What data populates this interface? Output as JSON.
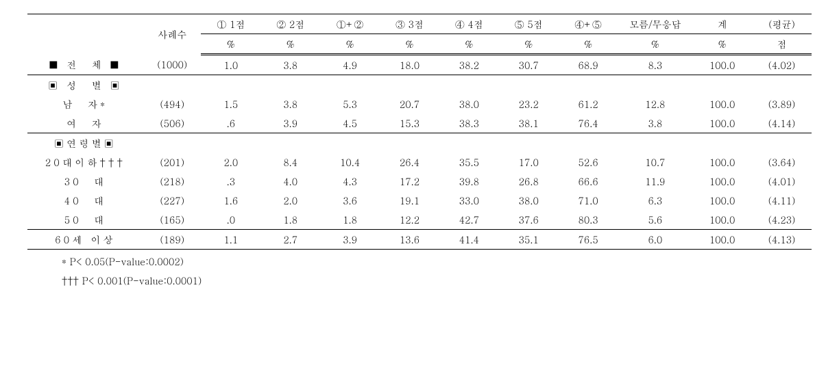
{
  "columns": {
    "label": "",
    "cases": "사례수",
    "c1": "① 1점",
    "c2": "② 2점",
    "c12": "①+②",
    "c3": "③ 3점",
    "c4": "④ 4점",
    "c5": "⑤ 5점",
    "c45": "④+⑤",
    "dk": "모름/무응답",
    "total": "계",
    "avg": "(평균)"
  },
  "unitRow": {
    "c1": "%",
    "c2": "%",
    "c12": "%",
    "c3": "%",
    "c4": "%",
    "c5": "%",
    "c45": "%",
    "dk": "%",
    "total": "%",
    "avg": "점"
  },
  "rows": [
    {
      "label": "■ 전　체 ■",
      "cases": "(1000)",
      "c1": "1.0",
      "c2": "3.8",
      "c12": "4.9",
      "c3": "18.0",
      "c4": "38.2",
      "c5": "30.7",
      "c45": "68.9",
      "dk": "8.3",
      "total": "100.0",
      "avg": "(4.02)",
      "sep": "bottom"
    },
    {
      "label": "▣ 성　별 ▣",
      "cases": "",
      "c1": "",
      "c2": "",
      "c12": "",
      "c3": "",
      "c4": "",
      "c5": "",
      "c45": "",
      "dk": "",
      "total": "",
      "avg": ""
    },
    {
      "label": "남　자*",
      "cases": "(494)",
      "c1": "1.5",
      "c2": "3.8",
      "c12": "5.3",
      "c3": "20.7",
      "c4": "38.0",
      "c5": "23.2",
      "c45": "61.2",
      "dk": "12.8",
      "total": "100.0",
      "avg": "(3.89)"
    },
    {
      "label": "여　자",
      "cases": "(506)",
      "c1": ".6",
      "c2": "3.9",
      "c12": "4.5",
      "c3": "15.3",
      "c4": "38.3",
      "c5": "38.1",
      "c45": "76.4",
      "dk": "3.8",
      "total": "100.0",
      "avg": "(4.14)",
      "sep": "bottom"
    },
    {
      "label": "▣연령별▣",
      "cases": "",
      "c1": "",
      "c2": "",
      "c12": "",
      "c3": "",
      "c4": "",
      "c5": "",
      "c45": "",
      "dk": "",
      "total": "",
      "avg": ""
    },
    {
      "label": "20대이하†††",
      "cases": "(201)",
      "c1": "2.0",
      "c2": "8.4",
      "c12": "10.4",
      "c3": "26.4",
      "c4": "35.5",
      "c5": "17.0",
      "c45": "52.6",
      "dk": "10.7",
      "total": "100.0",
      "avg": "(3.64)"
    },
    {
      "label": "30　대",
      "cases": "(218)",
      "c1": ".3",
      "c2": "4.0",
      "c12": "4.3",
      "c3": "17.2",
      "c4": "39.8",
      "c5": "26.8",
      "c45": "66.6",
      "dk": "11.9",
      "total": "100.0",
      "avg": "(4.01)"
    },
    {
      "label": "40　대",
      "cases": "(227)",
      "c1": "1.6",
      "c2": "2.0",
      "c12": "3.6",
      "c3": "19.1",
      "c4": "33.0",
      "c5": "38.0",
      "c45": "71.0",
      "dk": "6.3",
      "total": "100.0",
      "avg": "(4.11)"
    },
    {
      "label": "50　대",
      "cases": "(165)",
      "c1": ".0",
      "c2": "1.8",
      "c12": "1.8",
      "c3": "12.2",
      "c4": "42.7",
      "c5": "37.6",
      "c45": "80.3",
      "dk": "5.6",
      "total": "100.0",
      "avg": "(4.23)",
      "sep": "bottom"
    },
    {
      "label": "60세 이상",
      "cases": "(189)",
      "c1": "1.1",
      "c2": "2.7",
      "c12": "3.9",
      "c3": "13.6",
      "c4": "41.4",
      "c5": "35.1",
      "c45": "76.5",
      "dk": "6.0",
      "total": "100.0",
      "avg": "(4.13)",
      "sep": "bottom"
    }
  ],
  "footnotes": {
    "f1": "* P< 0.05(P-value:0.0002)",
    "f2": "††† P< 0.001(P-value:0.0001)"
  }
}
